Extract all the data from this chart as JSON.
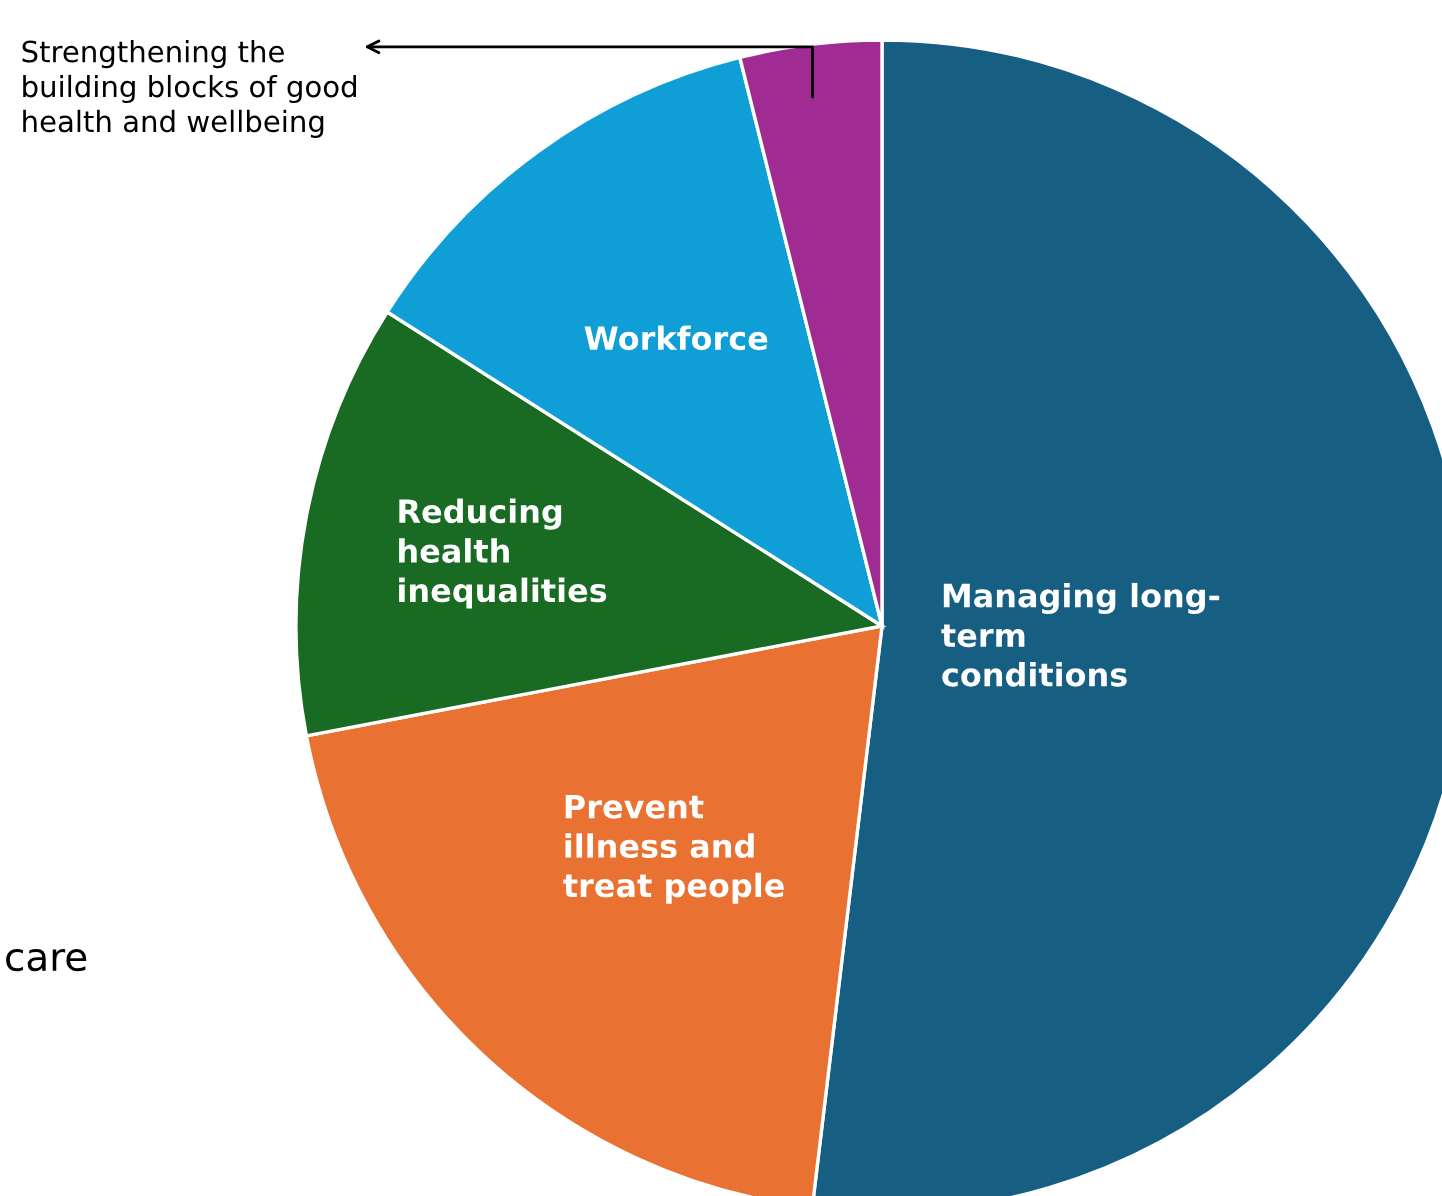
{
  "chart_data": {
    "type": "pie",
    "categories": [
      "Managing long-\nterm\nconditions",
      "Prevent\nillness and\ntreat people",
      "Reducing\nhealth\ninequalities",
      "Workforce",
      "Strengthening the\nbuilding blocks of good\nhealth and wellbeing"
    ],
    "values": [
      51.9,
      20.1,
      12.0,
      12.1,
      3.9
    ],
    "colors": [
      "#175f82",
      "#e97132",
      "#196b24",
      "#0f9ed5",
      "#a02b93"
    ],
    "annotations": [
      "care"
    ]
  }
}
